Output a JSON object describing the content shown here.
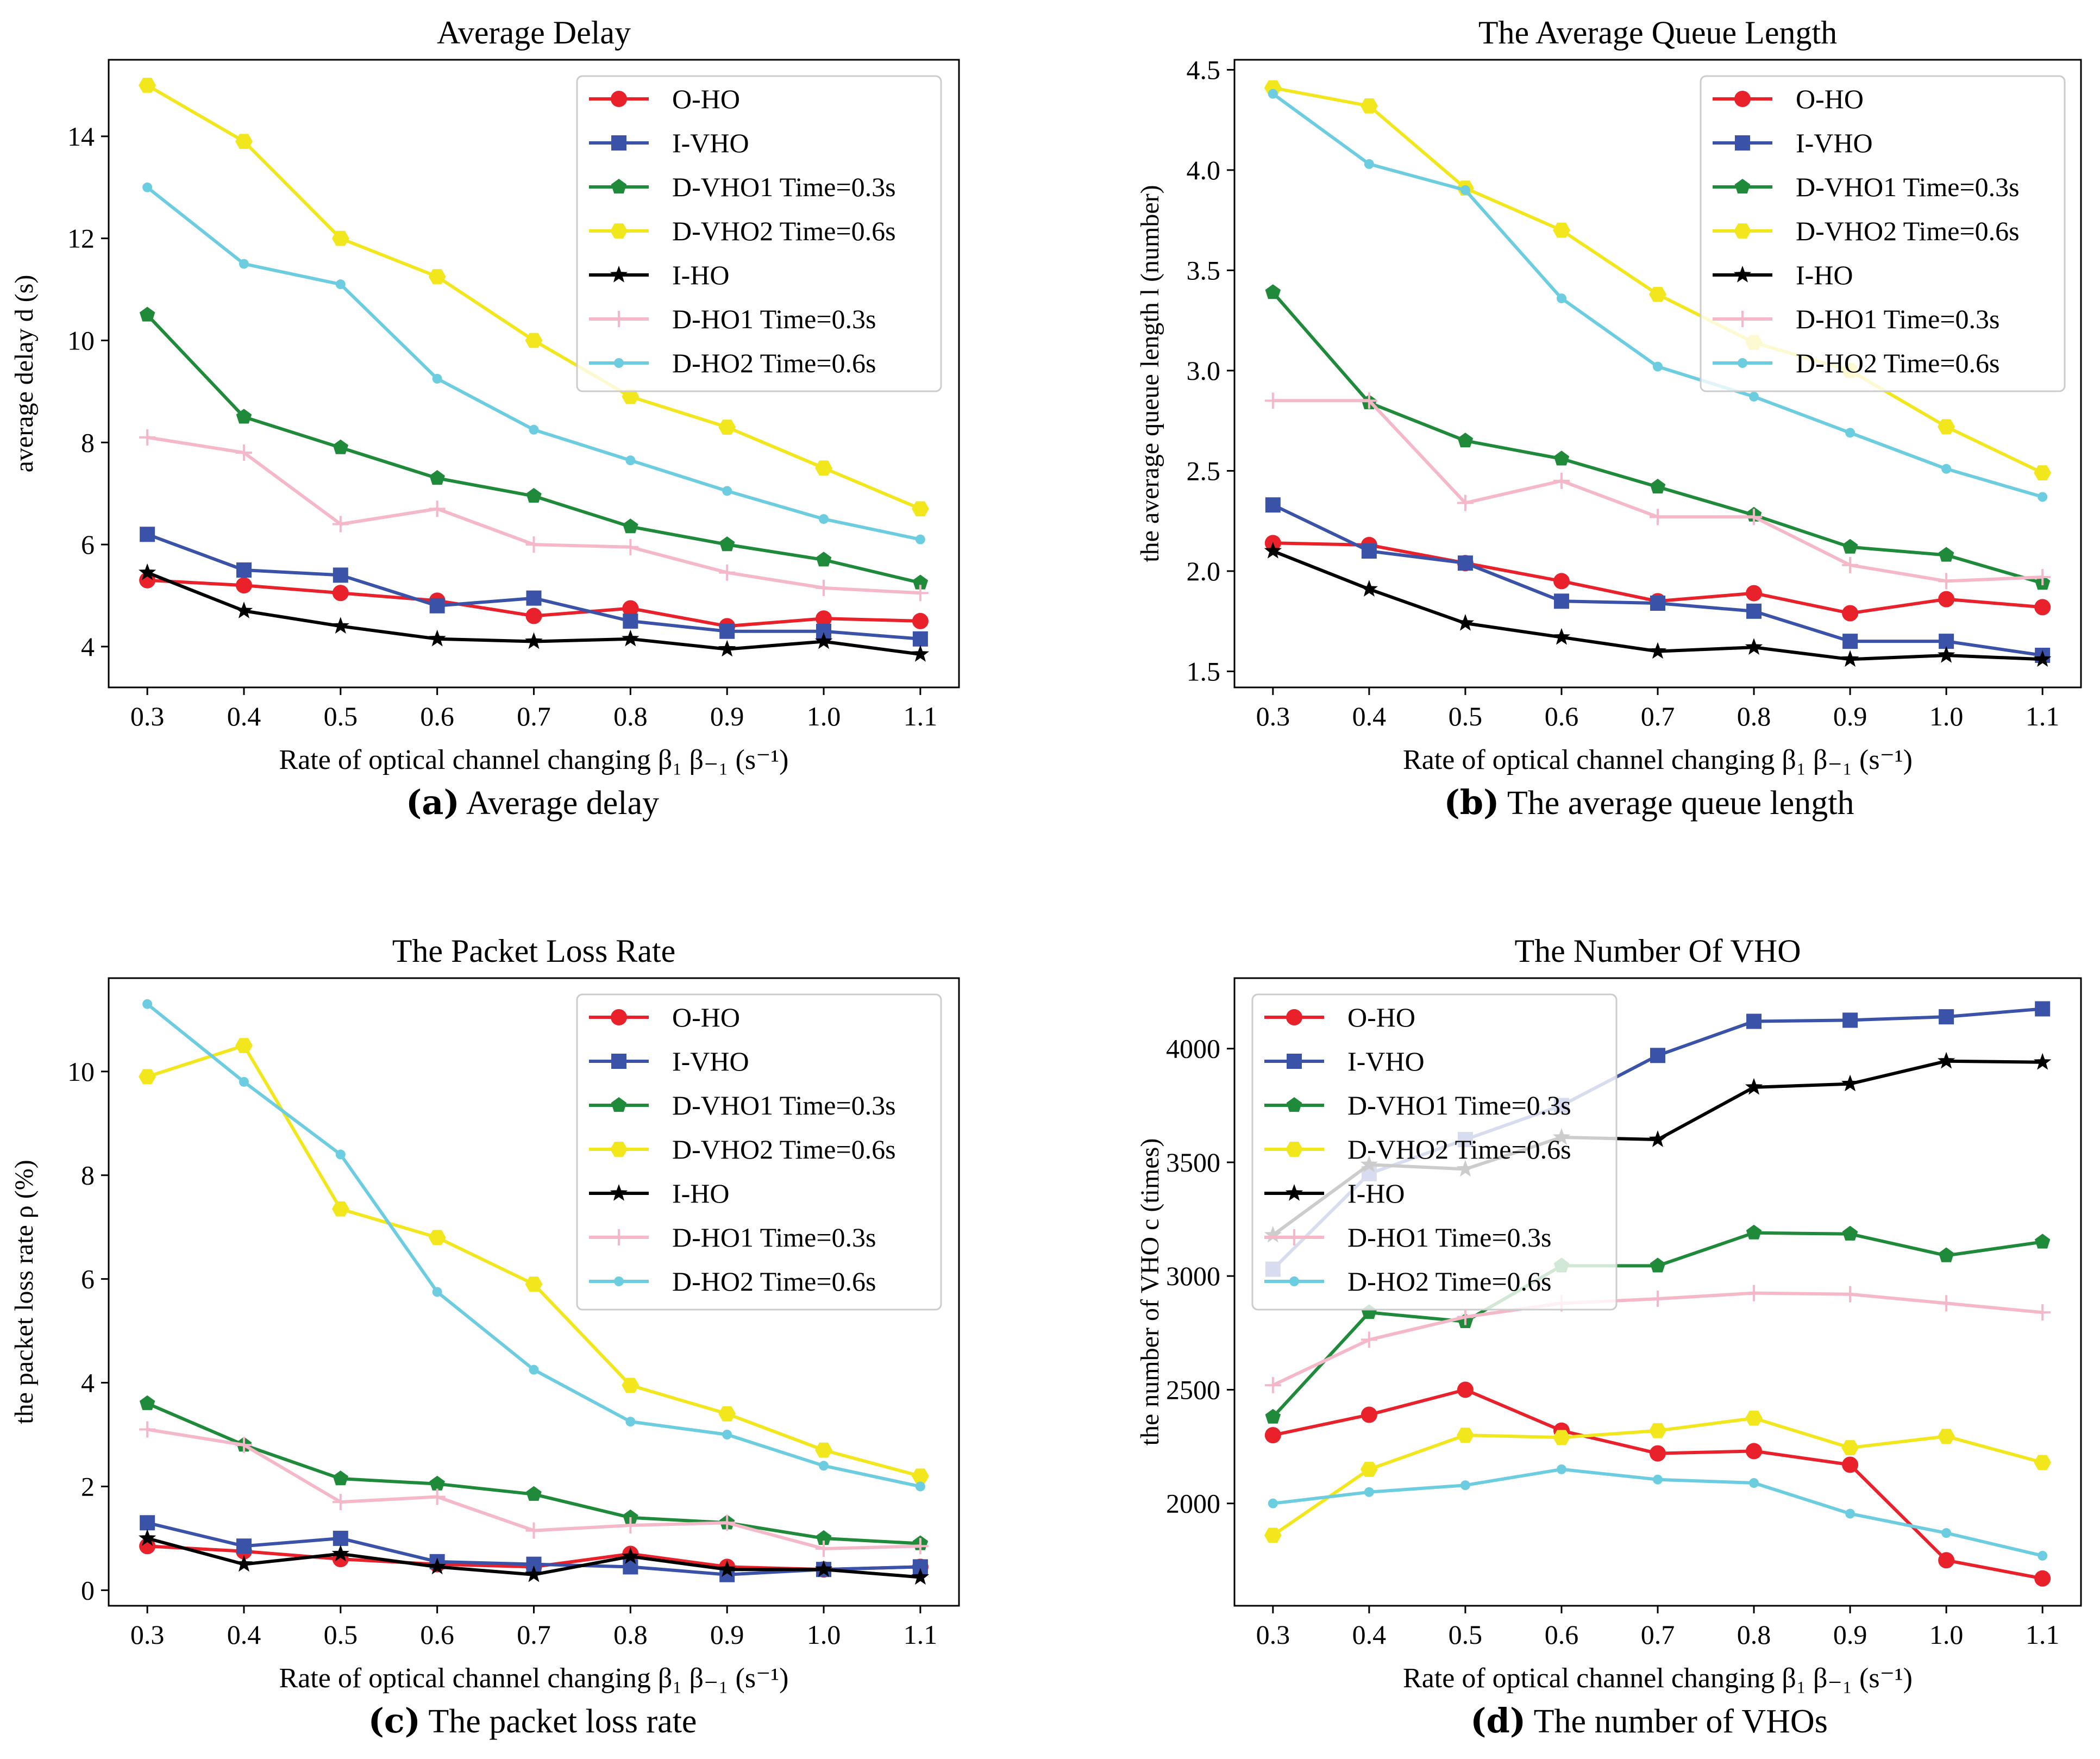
{
  "figure": {
    "x_values": [
      0.3,
      0.4,
      0.5,
      0.6,
      0.7,
      0.8,
      0.9,
      1.0,
      1.1
    ],
    "x_tick_labels": [
      "0.3",
      "0.4",
      "0.5",
      "0.6",
      "0.7",
      "0.8",
      "0.9",
      "1.0",
      "1.1"
    ],
    "xlabel": "Rate of optical channel changing β₁ β₋₁ (s⁻¹)",
    "series_styles": [
      {
        "name": "O-HO",
        "color": "#e8212b",
        "marker": "circle"
      },
      {
        "name": "I-VHO",
        "color": "#3a53a8",
        "marker": "square"
      },
      {
        "name": "D-VHO1 Time=0.3s",
        "color": "#1e8a3a",
        "marker": "pentagon"
      },
      {
        "name": "D-VHO2 Time=0.6s",
        "color": "#f2e61c",
        "marker": "hexagon"
      },
      {
        "name": "I-HO",
        "color": "#000000",
        "marker": "star"
      },
      {
        "name": "D-HO1 Time=0.3s",
        "color": "#f5b8c8",
        "marker": "plus"
      },
      {
        "name": "D-HO2 Time=0.6s",
        "color": "#6ccde0",
        "marker": "point"
      }
    ]
  },
  "chart_data": [
    {
      "id": "a",
      "type": "line",
      "title": "Average Delay",
      "ylabel": "average delay d (s)",
      "caption_letter": "(a)",
      "caption_text": "Average delay",
      "ylim": [
        3.2,
        15.5
      ],
      "yticks": [
        4,
        6,
        8,
        10,
        12,
        14
      ],
      "ytick_labels": [
        "4",
        "6",
        "8",
        "10",
        "12",
        "14"
      ],
      "legend_position": "top-right",
      "series": [
        {
          "name": "O-HO",
          "values": [
            5.3,
            5.2,
            5.05,
            4.9,
            4.6,
            4.75,
            4.4,
            4.55,
            4.5
          ]
        },
        {
          "name": "I-VHO",
          "values": [
            6.2,
            5.5,
            5.4,
            4.8,
            4.95,
            4.5,
            4.3,
            4.3,
            4.15
          ]
        },
        {
          "name": "D-VHO1 Time=0.3s",
          "values": [
            10.5,
            8.5,
            7.9,
            7.3,
            6.95,
            6.35,
            6.0,
            5.7,
            5.25
          ]
        },
        {
          "name": "D-VHO2 Time=0.6s",
          "values": [
            15.0,
            13.9,
            12.0,
            11.25,
            10.0,
            8.9,
            8.3,
            7.5,
            6.7
          ]
        },
        {
          "name": "I-HO",
          "values": [
            5.45,
            4.7,
            4.4,
            4.15,
            4.1,
            4.15,
            3.95,
            4.1,
            3.85
          ]
        },
        {
          "name": "D-HO1 Time=0.3s",
          "values": [
            8.1,
            7.8,
            6.4,
            6.7,
            6.0,
            5.95,
            5.45,
            5.15,
            5.05
          ]
        },
        {
          "name": "D-HO2 Time=0.6s",
          "values": [
            13.0,
            11.5,
            11.1,
            9.25,
            8.25,
            7.65,
            7.05,
            6.5,
            6.1
          ]
        }
      ]
    },
    {
      "id": "b",
      "type": "line",
      "title": "The Average Queue Length",
      "ylabel": "the average queue length l (number)",
      "caption_letter": "(b)",
      "caption_text": "The average queue length",
      "ylim": [
        1.42,
        4.55
      ],
      "yticks": [
        1.5,
        2.0,
        2.5,
        3.0,
        3.5,
        4.0,
        4.5
      ],
      "ytick_labels": [
        "1.5",
        "2.0",
        "2.5",
        "3.0",
        "3.5",
        "4.0",
        "4.5"
      ],
      "legend_position": "top-right",
      "series": [
        {
          "name": "O-HO",
          "values": [
            2.14,
            2.13,
            2.04,
            1.95,
            1.85,
            1.89,
            1.79,
            1.86,
            1.82
          ]
        },
        {
          "name": "I-VHO",
          "values": [
            2.33,
            2.1,
            2.04,
            1.85,
            1.84,
            1.8,
            1.65,
            1.65,
            1.58
          ]
        },
        {
          "name": "D-VHO1 Time=0.3s",
          "values": [
            3.39,
            2.84,
            2.65,
            2.56,
            2.42,
            2.28,
            2.12,
            2.08,
            1.94
          ]
        },
        {
          "name": "D-VHO2 Time=0.6s",
          "values": [
            4.41,
            4.32,
            3.91,
            3.7,
            3.38,
            3.14,
            3.0,
            2.72,
            2.49
          ]
        },
        {
          "name": "I-HO",
          "values": [
            2.1,
            1.91,
            1.74,
            1.67,
            1.6,
            1.62,
            1.56,
            1.58,
            1.56
          ]
        },
        {
          "name": "D-HO1 Time=0.3s",
          "values": [
            2.85,
            2.85,
            2.34,
            2.45,
            2.27,
            2.27,
            2.03,
            1.95,
            1.97
          ]
        },
        {
          "name": "D-HO2 Time=0.6s",
          "values": [
            4.38,
            4.03,
            3.9,
            3.36,
            3.02,
            2.87,
            2.69,
            2.51,
            2.37
          ]
        }
      ]
    },
    {
      "id": "c",
      "type": "line",
      "title": "The Packet Loss Rate",
      "ylabel": "the packet loss rate ρ (%)",
      "caption_letter": "(c)",
      "caption_text": "The packet loss rate",
      "ylim": [
        -0.3,
        11.8
      ],
      "yticks": [
        0,
        2,
        4,
        6,
        8,
        10
      ],
      "ytick_labels": [
        "0",
        "2",
        "4",
        "6",
        "8",
        "10"
      ],
      "legend_position": "top-right",
      "series": [
        {
          "name": "O-HO",
          "values": [
            0.85,
            0.75,
            0.6,
            0.5,
            0.45,
            0.7,
            0.45,
            0.4,
            0.45
          ]
        },
        {
          "name": "I-VHO",
          "values": [
            1.3,
            0.85,
            1.0,
            0.55,
            0.5,
            0.45,
            0.3,
            0.4,
            0.45
          ]
        },
        {
          "name": "D-VHO1 Time=0.3s",
          "values": [
            3.6,
            2.8,
            2.15,
            2.05,
            1.85,
            1.4,
            1.3,
            1.0,
            0.9
          ]
        },
        {
          "name": "D-VHO2 Time=0.6s",
          "values": [
            9.9,
            10.5,
            7.35,
            6.8,
            5.9,
            3.95,
            3.4,
            2.7,
            2.2
          ]
        },
        {
          "name": "I-HO",
          "values": [
            1.0,
            0.5,
            0.7,
            0.45,
            0.3,
            0.65,
            0.4,
            0.4,
            0.25
          ]
        },
        {
          "name": "D-HO1 Time=0.3s",
          "values": [
            3.1,
            2.8,
            1.7,
            1.8,
            1.15,
            1.25,
            1.3,
            0.8,
            0.85
          ]
        },
        {
          "name": "D-HO2 Time=0.6s",
          "values": [
            11.3,
            9.8,
            8.4,
            5.75,
            4.25,
            3.25,
            3.0,
            2.4,
            2.0
          ]
        }
      ]
    },
    {
      "id": "d",
      "type": "line",
      "title": "The Number Of VHO",
      "ylabel": "the number of VHO c (times)",
      "caption_letter": "(d)",
      "caption_text": "The number of VHOs",
      "ylim": [
        1550,
        4310
      ],
      "yticks": [
        2000,
        2500,
        3000,
        3500,
        4000
      ],
      "ytick_labels": [
        "2000",
        "2500",
        "3000",
        "3500",
        "4000"
      ],
      "legend_position": "top-left",
      "series": [
        {
          "name": "O-HO",
          "values": [
            2300,
            2390,
            2500,
            2320,
            2220,
            2230,
            2170,
            1750,
            1670
          ]
        },
        {
          "name": "I-VHO",
          "values": [
            3030,
            3450,
            3600,
            3750,
            3970,
            4120,
            4125,
            4140,
            4175
          ]
        },
        {
          "name": "D-VHO1 Time=0.3s",
          "values": [
            2380,
            2840,
            2800,
            3045,
            3045,
            3190,
            3185,
            3090,
            3150
          ]
        },
        {
          "name": "D-VHO2 Time=0.6s",
          "values": [
            1860,
            2150,
            2300,
            2290,
            2320,
            2375,
            2245,
            2295,
            2180
          ]
        },
        {
          "name": "I-HO",
          "values": [
            3180,
            3490,
            3470,
            3610,
            3600,
            3830,
            3845,
            3945,
            3940
          ]
        },
        {
          "name": "D-HO1 Time=0.3s",
          "values": [
            2520,
            2720,
            2820,
            2880,
            2900,
            2925,
            2920,
            2880,
            2840
          ]
        },
        {
          "name": "D-HO2 Time=0.6s",
          "values": [
            2000,
            2050,
            2080,
            2150,
            2105,
            2090,
            1955,
            1870,
            1770
          ]
        }
      ]
    }
  ]
}
